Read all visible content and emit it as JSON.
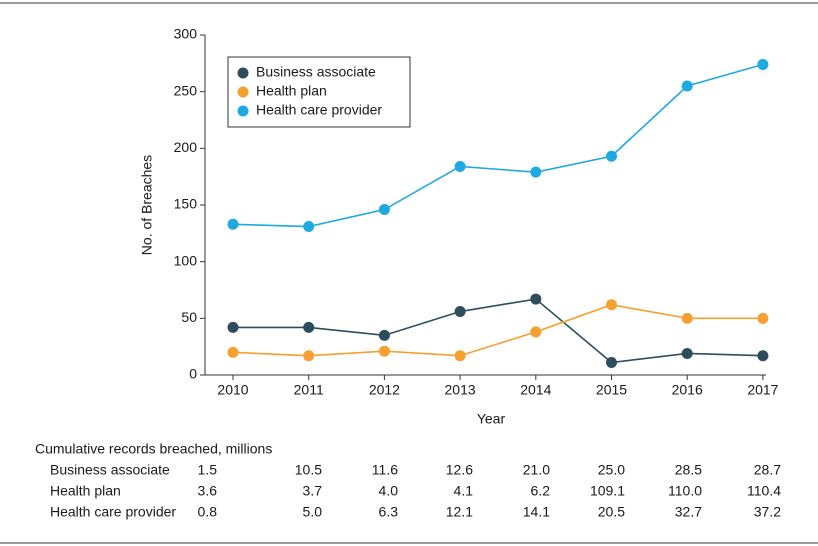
{
  "chart_data": {
    "type": "line",
    "x_label": "Year",
    "y_label": "No. of Breaches",
    "categories": [
      "2010",
      "2011",
      "2012",
      "2013",
      "2014",
      "2015",
      "2016",
      "2017"
    ],
    "series": [
      {
        "name": "Business associate",
        "color": "#2e4d5c",
        "values": [
          42,
          42,
          35,
          56,
          67,
          11,
          19,
          17
        ]
      },
      {
        "name": "Health plan",
        "color": "#f5a031",
        "values": [
          20,
          17,
          21,
          17,
          38,
          62,
          50,
          50
        ]
      },
      {
        "name": "Health care provider",
        "color": "#1fa9e1",
        "values": [
          133,
          131,
          146,
          184,
          179,
          193,
          255,
          274
        ]
      }
    ],
    "ylim": [
      0,
      300
    ],
    "yticks": [
      0,
      50,
      100,
      150,
      200,
      250,
      300
    ],
    "legend": "upper left"
  },
  "table": {
    "title": "Cumulative records breached, millions",
    "rows": [
      {
        "label": "Business associate",
        "values": [
          "1.5",
          "10.5",
          "11.6",
          "12.6",
          "21.0",
          "25.0",
          "28.5",
          "28.7"
        ]
      },
      {
        "label": "Health plan",
        "values": [
          "3.6",
          "3.7",
          "4.0",
          "4.1",
          "6.2",
          "109.1",
          "110.0",
          "110.4"
        ]
      },
      {
        "label": "Health care provider",
        "values": [
          "0.8",
          "5.0",
          "6.3",
          "12.1",
          "14.1",
          "20.5",
          "32.7",
          "37.2"
        ]
      }
    ]
  }
}
